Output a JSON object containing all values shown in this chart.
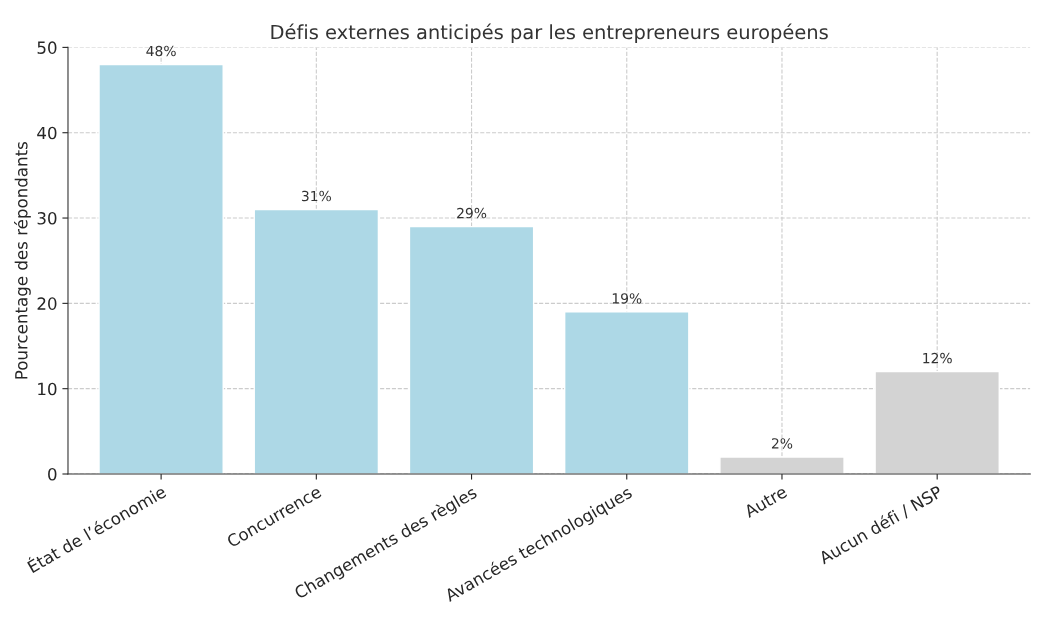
{
  "chart_data": {
    "type": "bar",
    "title": "Défis externes anticipés par les entrepreneurs européens",
    "ylabel": "Pourcentage des répondants",
    "categories": [
      "État de l’économie",
      "Concurrence",
      "Changements des règles",
      "Avancées technologiques",
      "Autre",
      "Aucun défi / NSP"
    ],
    "values": [
      48,
      31,
      29,
      19,
      2,
      12
    ],
    "colors": [
      "#add8e6",
      "#add8e6",
      "#add8e6",
      "#add8e6",
      "#d3d3d3",
      "#d3d3d3"
    ],
    "value_labels": [
      "48%",
      "31%",
      "29%",
      "19%",
      "2%",
      "12%"
    ],
    "ylim": [
      0,
      50
    ],
    "yticks": [
      0,
      10,
      20,
      30,
      40,
      50
    ],
    "grid": true,
    "legend": false
  }
}
